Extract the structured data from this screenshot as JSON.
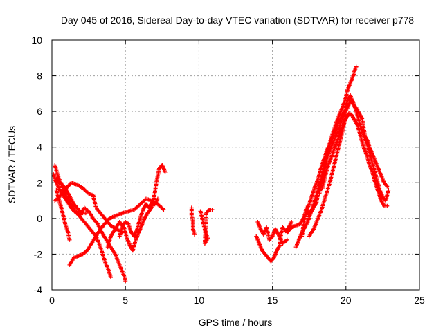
{
  "chart_data": {
    "type": "scatter",
    "title": "Day 045 of 2016, Sidereal Day-to-day VTEC variation (SDTVAR) for receiver p778",
    "xlabel": "GPS time / hours",
    "ylabel": "SDTVAR / TECUs",
    "xlim": [
      0,
      25
    ],
    "ylim": [
      -4,
      10
    ],
    "xticks": [
      0,
      5,
      10,
      15,
      20,
      25
    ],
    "yticks": [
      -4,
      -2,
      0,
      2,
      4,
      6,
      8,
      10
    ],
    "grid": true,
    "marker": "+",
    "series": [
      {
        "name": "SDTVAR",
        "color": "#ff0000",
        "tracks": [
          [
            [
              0.1,
              2.5
            ],
            [
              0.3,
              2.0
            ],
            [
              0.6,
              1.5
            ],
            [
              1.0,
              1.0
            ],
            [
              1.4,
              0.5
            ],
            [
              1.8,
              0.2
            ],
            [
              2.2,
              -0.2
            ],
            [
              2.6,
              -0.6
            ],
            [
              3.0,
              -1.0
            ],
            [
              3.3,
              -1.6
            ],
            [
              3.6,
              -2.4
            ],
            [
              3.9,
              -3.0
            ],
            [
              4.0,
              -3.3
            ]
          ],
          [
            [
              0.2,
              1.0
            ],
            [
              0.5,
              1.2
            ],
            [
              0.9,
              1.6
            ],
            [
              1.3,
              2.0
            ],
            [
              1.7,
              1.9
            ],
            [
              2.1,
              1.7
            ],
            [
              2.5,
              1.4
            ],
            [
              2.8,
              1.3
            ],
            [
              3.0,
              0.6
            ],
            [
              3.3,
              0.3
            ],
            [
              3.6,
              0.0
            ],
            [
              4.0,
              -0.4
            ],
            [
              4.4,
              -0.6
            ],
            [
              4.8,
              -0.8
            ]
          ],
          [
            [
              0.2,
              3.0
            ],
            [
              0.4,
              2.4
            ],
            [
              0.7,
              1.8
            ],
            [
              1.0,
              1.2
            ],
            [
              1.3,
              0.8
            ],
            [
              1.6,
              0.4
            ],
            [
              1.9,
              0.2
            ],
            [
              2.2,
              0.6
            ],
            [
              2.5,
              0.4
            ],
            [
              2.8,
              0.0
            ],
            [
              3.1,
              -0.3
            ],
            [
              3.4,
              -0.8
            ],
            [
              3.7,
              -1.2
            ],
            [
              4.0,
              -1.6
            ],
            [
              4.3,
              -2.0
            ],
            [
              4.6,
              -2.6
            ],
            [
              4.9,
              -3.2
            ],
            [
              5.0,
              -3.5
            ]
          ],
          [
            [
              0.3,
              1.6
            ],
            [
              0.5,
              1.0
            ],
            [
              0.7,
              0.4
            ],
            [
              0.9,
              -0.3
            ],
            [
              1.1,
              -0.8
            ],
            [
              1.2,
              -1.2
            ]
          ],
          [
            [
              1.2,
              -2.6
            ],
            [
              1.5,
              -2.2
            ],
            [
              1.8,
              -2.1
            ],
            [
              2.1,
              -2.0
            ],
            [
              2.4,
              -1.8
            ],
            [
              2.7,
              -1.4
            ],
            [
              3.0,
              -1.0
            ],
            [
              3.3,
              -0.6
            ],
            [
              3.6,
              -0.3
            ],
            [
              3.9,
              0.0
            ],
            [
              4.2,
              0.1
            ],
            [
              4.5,
              0.2
            ],
            [
              4.8,
              0.3
            ],
            [
              5.2,
              0.4
            ],
            [
              5.6,
              0.5
            ],
            [
              6.0,
              0.8
            ],
            [
              6.4,
              1.1
            ],
            [
              6.8,
              1.0
            ],
            [
              7.2,
              0.8
            ],
            [
              7.6,
              0.5
            ]
          ],
          [
            [
              3.8,
              -1.6
            ],
            [
              4.0,
              -1.0
            ],
            [
              4.3,
              -0.6
            ],
            [
              4.6,
              -0.2
            ],
            [
              4.9,
              -0.5
            ],
            [
              5.1,
              -1.1
            ],
            [
              5.3,
              -1.5
            ],
            [
              5.5,
              -1.8
            ],
            [
              5.7,
              -1.2
            ],
            [
              5.9,
              -0.8
            ],
            [
              6.1,
              -0.4
            ],
            [
              6.3,
              0.0
            ],
            [
              6.5,
              0.3
            ],
            [
              6.7,
              0.5
            ],
            [
              6.9,
              0.9
            ],
            [
              7.1,
              2.0
            ],
            [
              7.3,
              2.8
            ],
            [
              7.5,
              3.0
            ],
            [
              7.7,
              2.6
            ]
          ],
          [
            [
              4.6,
              -1.0
            ],
            [
              4.8,
              -0.4
            ],
            [
              5.0,
              -0.2
            ],
            [
              5.2,
              -0.3
            ],
            [
              5.4,
              -0.8
            ],
            [
              5.6,
              -1.0
            ],
            [
              5.8,
              -0.6
            ],
            [
              6.0,
              0.0
            ],
            [
              6.2,
              0.5
            ],
            [
              6.4,
              0.8
            ],
            [
              6.6,
              0.6
            ],
            [
              6.8,
              0.9
            ],
            [
              7.0,
              0.8
            ],
            [
              7.2,
              1.1
            ]
          ],
          [
            [
              9.5,
              0.6
            ],
            [
              9.5,
              0.2
            ],
            [
              9.6,
              -0.2
            ],
            [
              9.6,
              -0.6
            ],
            [
              9.7,
              -0.9
            ]
          ],
          [
            [
              10.1,
              0.4
            ],
            [
              10.2,
              0.1
            ],
            [
              10.3,
              -0.3
            ],
            [
              10.4,
              -0.6
            ],
            [
              10.5,
              -0.9
            ],
            [
              10.6,
              -1.1
            ],
            [
              10.4,
              -1.4
            ],
            [
              10.5,
              0.3
            ],
            [
              10.7,
              0.5
            ],
            [
              10.9,
              0.5
            ]
          ],
          [
            [
              13.9,
              -1.0
            ],
            [
              14.1,
              -1.4
            ],
            [
              14.3,
              -1.8
            ],
            [
              14.5,
              -2.0
            ],
            [
              14.7,
              -2.2
            ],
            [
              14.9,
              -2.4
            ],
            [
              15.1,
              -2.2
            ],
            [
              15.3,
              -1.8
            ],
            [
              15.5,
              -1.5
            ],
            [
              15.6,
              -0.8
            ],
            [
              15.7,
              -0.5
            ],
            [
              15.9,
              -0.7
            ],
            [
              16.1,
              -0.5
            ],
            [
              16.3,
              -0.2
            ]
          ],
          [
            [
              14.0,
              -0.2
            ],
            [
              14.2,
              -0.6
            ],
            [
              14.4,
              -0.9
            ],
            [
              14.6,
              -0.5
            ],
            [
              14.8,
              -1.2
            ],
            [
              15.0,
              -1.0
            ],
            [
              15.2,
              -0.6
            ],
            [
              15.4,
              -0.9
            ],
            [
              15.7,
              -1.4
            ],
            [
              16.0,
              -1.2
            ]
          ],
          [
            [
              16.0,
              -0.8
            ],
            [
              16.3,
              -0.5
            ],
            [
              16.6,
              -0.4
            ],
            [
              16.9,
              -0.3
            ],
            [
              17.1,
              0.0
            ],
            [
              17.3,
              0.4
            ],
            [
              17.5,
              0.8
            ],
            [
              17.7,
              1.3
            ],
            [
              17.9,
              1.8
            ],
            [
              18.1,
              2.2
            ],
            [
              18.3,
              2.8
            ],
            [
              18.5,
              3.3
            ],
            [
              18.7,
              3.8
            ],
            [
              18.9,
              4.2
            ],
            [
              19.1,
              4.6
            ],
            [
              19.3,
              5.0
            ],
            [
              19.5,
              5.4
            ],
            [
              19.7,
              5.7
            ],
            [
              19.9,
              6.0
            ],
            [
              20.1,
              6.6
            ],
            [
              20.3,
              6.9
            ],
            [
              20.5,
              6.5
            ],
            [
              20.7,
              6.0
            ],
            [
              20.9,
              5.4
            ],
            [
              21.1,
              4.9
            ],
            [
              21.3,
              4.5
            ],
            [
              21.5,
              4.0
            ],
            [
              21.7,
              3.4
            ],
            [
              21.9,
              2.8
            ],
            [
              22.1,
              2.2
            ],
            [
              22.3,
              1.6
            ],
            [
              22.5,
              1.2
            ],
            [
              22.7,
              1.0
            ],
            [
              22.9,
              1.6
            ]
          ],
          [
            [
              16.6,
              -1.6
            ],
            [
              16.8,
              -1.2
            ],
            [
              17.0,
              -0.8
            ],
            [
              17.2,
              -0.5
            ],
            [
              17.4,
              -0.2
            ],
            [
              17.6,
              0.3
            ],
            [
              17.8,
              0.8
            ],
            [
              18.0,
              1.3
            ],
            [
              18.2,
              1.9
            ],
            [
              18.4,
              2.4
            ],
            [
              18.6,
              3.2
            ],
            [
              18.8,
              3.9
            ],
            [
              19.0,
              4.5
            ],
            [
              19.2,
              5.0
            ],
            [
              19.4,
              5.5
            ],
            [
              19.6,
              5.9
            ],
            [
              19.8,
              6.3
            ],
            [
              20.0,
              6.8
            ],
            [
              20.1,
              7.2
            ],
            [
              20.3,
              7.6
            ],
            [
              20.5,
              8.0
            ],
            [
              20.6,
              8.3
            ],
            [
              20.7,
              8.5
            ]
          ],
          [
            [
              17.0,
              -1.0
            ],
            [
              17.3,
              0.6
            ],
            [
              17.5,
              0.2
            ],
            [
              17.8,
              0.6
            ],
            [
              18.0,
              0.9
            ],
            [
              18.2,
              2.0
            ],
            [
              18.4,
              1.7
            ],
            [
              18.6,
              2.4
            ],
            [
              18.8,
              3.0
            ],
            [
              19.0,
              3.4
            ],
            [
              19.2,
              3.9
            ],
            [
              19.4,
              4.3
            ],
            [
              19.6,
              4.8
            ],
            [
              19.8,
              5.2
            ],
            [
              20.0,
              5.6
            ],
            [
              20.2,
              5.9
            ],
            [
              20.4,
              5.8
            ],
            [
              20.6,
              5.5
            ],
            [
              20.8,
              5.2
            ],
            [
              21.0,
              4.6
            ],
            [
              21.2,
              4.0
            ],
            [
              21.4,
              3.6
            ],
            [
              21.6,
              3.0
            ],
            [
              21.8,
              2.6
            ],
            [
              22.0,
              2.0
            ],
            [
              22.2,
              1.5
            ],
            [
              22.4,
              1.0
            ],
            [
              22.6,
              0.7
            ],
            [
              22.8,
              0.7
            ]
          ],
          [
            [
              18.2,
              1.4
            ],
            [
              18.5,
              2.6
            ],
            [
              18.8,
              3.6
            ],
            [
              19.0,
              4.0
            ],
            [
              19.3,
              4.6
            ],
            [
              19.6,
              5.2
            ],
            [
              19.9,
              5.9
            ],
            [
              20.1,
              6.2
            ],
            [
              20.3,
              6.6
            ],
            [
              20.5,
              6.4
            ],
            [
              20.7,
              6.2
            ],
            [
              20.9,
              5.9
            ],
            [
              21.1,
              5.6
            ],
            [
              21.3,
              4.6
            ],
            [
              21.5,
              4.3
            ],
            [
              21.6,
              4.0
            ],
            [
              21.8,
              3.6
            ],
            [
              22.0,
              3.2
            ],
            [
              22.2,
              2.8
            ],
            [
              22.4,
              2.4
            ],
            [
              22.6,
              2.0
            ],
            [
              22.8,
              1.8
            ]
          ],
          [
            [
              0.3,
              2.2
            ],
            [
              0.5,
              2.0
            ],
            [
              0.7,
              1.9
            ],
            [
              0.9,
              1.7
            ],
            [
              1.1,
              1.4
            ],
            [
              1.3,
              1.1
            ],
            [
              1.5,
              0.8
            ],
            [
              1.7,
              0.6
            ],
            [
              1.9,
              0.4
            ],
            [
              2.1,
              0.3
            ],
            [
              2.3,
              0.3
            ]
          ],
          [
            [
              17.5,
              -1.0
            ],
            [
              17.8,
              -0.6
            ],
            [
              18.0,
              -0.2
            ],
            [
              18.3,
              0.4
            ],
            [
              18.6,
              1.2
            ],
            [
              18.9,
              2.0
            ],
            [
              19.2,
              3.0
            ],
            [
              19.5,
              4.0
            ],
            [
              19.8,
              5.0
            ],
            [
              20.0,
              5.8
            ]
          ]
        ]
      }
    ]
  }
}
